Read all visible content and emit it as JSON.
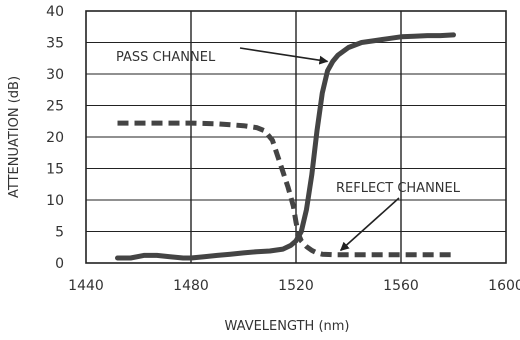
{
  "chart_data": {
    "type": "line",
    "xlabel": "WAVELENGTH (nm)",
    "ylabel": "ATTENUATION (dB)",
    "xlim": [
      1440,
      1600
    ],
    "ylim": [
      0,
      40
    ],
    "x_ticks": [
      1440,
      1480,
      1520,
      1560,
      1600
    ],
    "y_ticks": [
      0,
      5,
      10,
      15,
      20,
      25,
      30,
      35,
      40
    ],
    "grid": true,
    "series": [
      {
        "name": "PASS CHANNEL",
        "style": "solid",
        "color": "#444444",
        "x": [
          1452,
          1457,
          1462,
          1467,
          1472,
          1477,
          1480,
          1485,
          1490,
          1495,
          1500,
          1505,
          1510,
          1515,
          1518,
          1520,
          1522,
          1524,
          1526,
          1528,
          1530,
          1532,
          1534,
          1536,
          1540,
          1545,
          1550,
          1555,
          1560,
          1565,
          1570,
          1575,
          1580
        ],
        "y": [
          0.8,
          0.8,
          1.2,
          1.2,
          1.0,
          0.8,
          0.8,
          1.0,
          1.2,
          1.4,
          1.6,
          1.8,
          1.9,
          2.2,
          2.8,
          3.5,
          5.0,
          8.5,
          14.0,
          21.0,
          27.0,
          30.5,
          32.0,
          33.0,
          34.2,
          35.0,
          35.3,
          35.6,
          35.9,
          36.0,
          36.1,
          36.1,
          36.2
        ]
      },
      {
        "name": "REFLECT CHANNEL",
        "style": "dashed",
        "color": "#444444",
        "x": [
          1452,
          1460,
          1470,
          1480,
          1490,
          1500,
          1505,
          1508,
          1511,
          1513,
          1515,
          1517,
          1519,
          1520,
          1521,
          1522,
          1524,
          1526,
          1528,
          1530,
          1535,
          1540,
          1545,
          1550,
          1560,
          1570,
          1580
        ],
        "y": [
          22.2,
          22.2,
          22.2,
          22.2,
          22.1,
          21.8,
          21.5,
          21.0,
          19.5,
          17.0,
          14.5,
          12.0,
          9.0,
          6.5,
          4.5,
          3.5,
          2.6,
          2.0,
          1.6,
          1.4,
          1.3,
          1.3,
          1.3,
          1.3,
          1.3,
          1.3,
          1.3
        ]
      }
    ],
    "annotations": [
      {
        "text": "PASS CHANNEL",
        "arrow_to": {
          "x": 1532,
          "y": 32
        }
      },
      {
        "text": "REFLECT CHANNEL",
        "arrow_to": {
          "x": 1537,
          "y": 2.0
        }
      }
    ]
  }
}
